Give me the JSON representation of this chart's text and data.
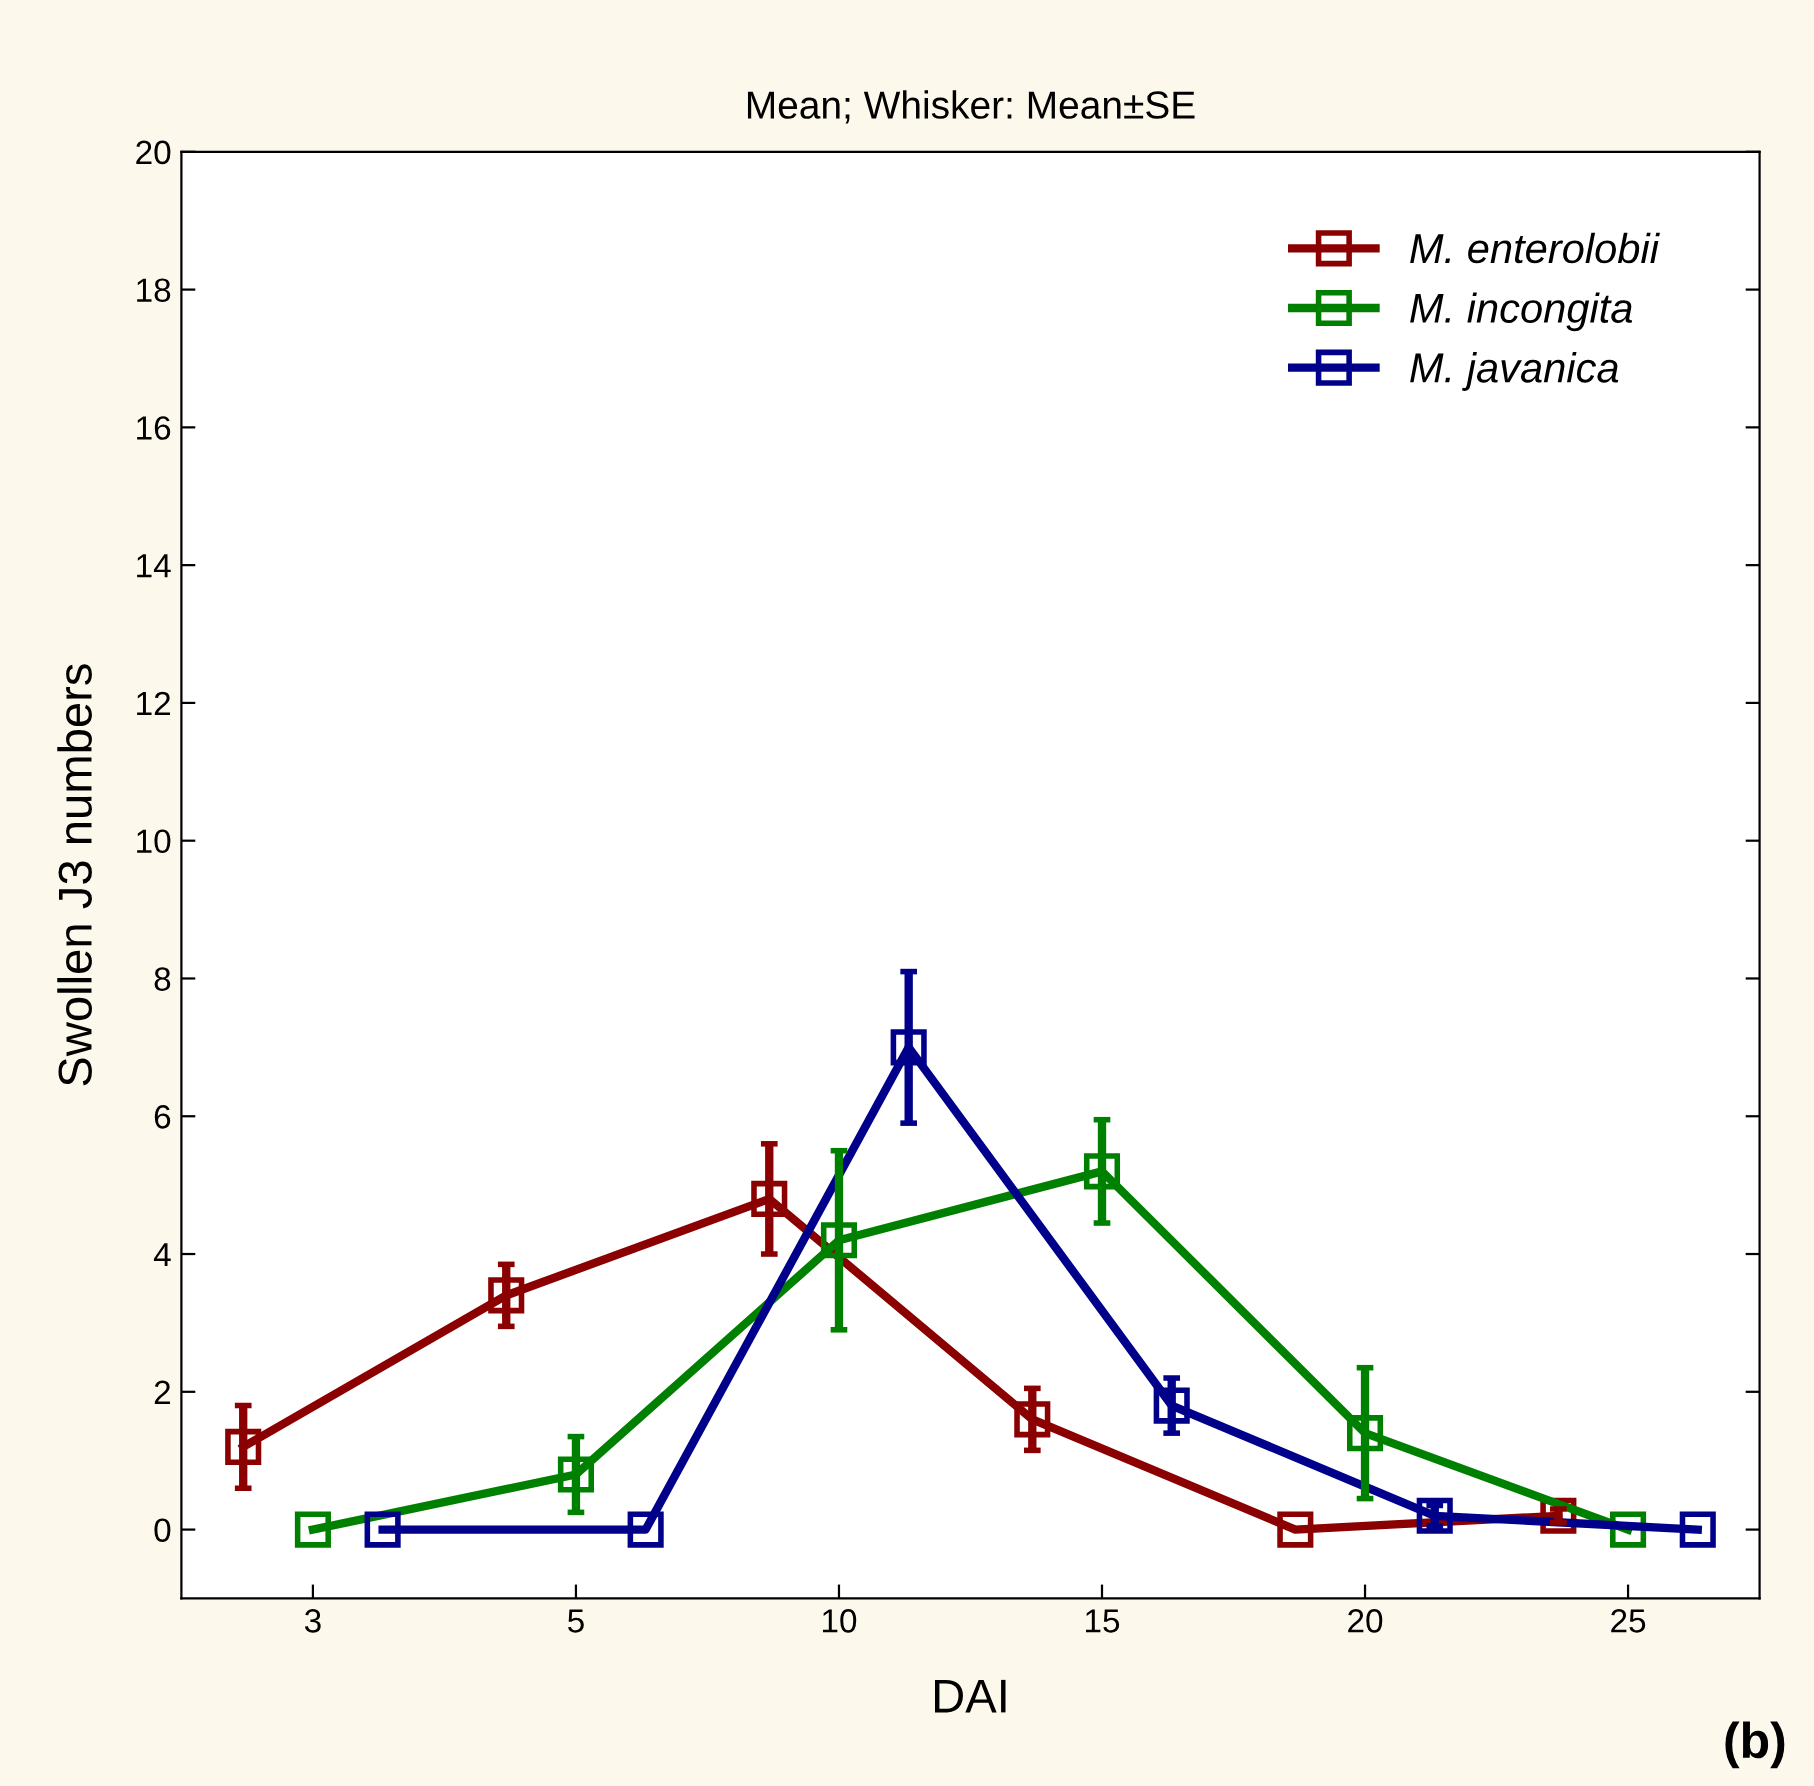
{
  "chart_data": {
    "type": "line",
    "title": "Mean; Whisker: Mean±SE",
    "xlabel": "DAI",
    "ylabel": "Swollen J3 numbers",
    "categories": [
      "3",
      "5",
      "10",
      "15",
      "20",
      "25"
    ],
    "series": [
      {
        "name": "M. enterolobii",
        "color": "#8b0000",
        "values": [
          1.2,
          3.4,
          4.8,
          1.6,
          0,
          0.2
        ],
        "errors": [
          0.6,
          0.45,
          0.8,
          0.45,
          null,
          0.1
        ]
      },
      {
        "name": "M. incongita",
        "color": "#008000",
        "values": [
          0,
          0.8,
          4.2,
          5.2,
          1.4,
          0
        ],
        "errors": [
          null,
          0.55,
          1.3,
          0.75,
          0.95,
          null
        ]
      },
      {
        "name": "M. javanica",
        "color": "#00008b",
        "values": [
          0,
          0,
          7.0,
          1.8,
          0.2,
          0
        ],
        "errors": [
          null,
          null,
          1.1,
          0.4,
          0.15,
          null
        ]
      }
    ],
    "ylim": [
      -1,
      20
    ],
    "yticks": [
      0,
      2,
      4,
      6,
      8,
      10,
      12,
      14,
      16,
      18,
      20
    ],
    "marker": "square",
    "line_style": "solid",
    "legend": "top right",
    "grid": false,
    "annotations": [
      "(b)"
    ]
  }
}
